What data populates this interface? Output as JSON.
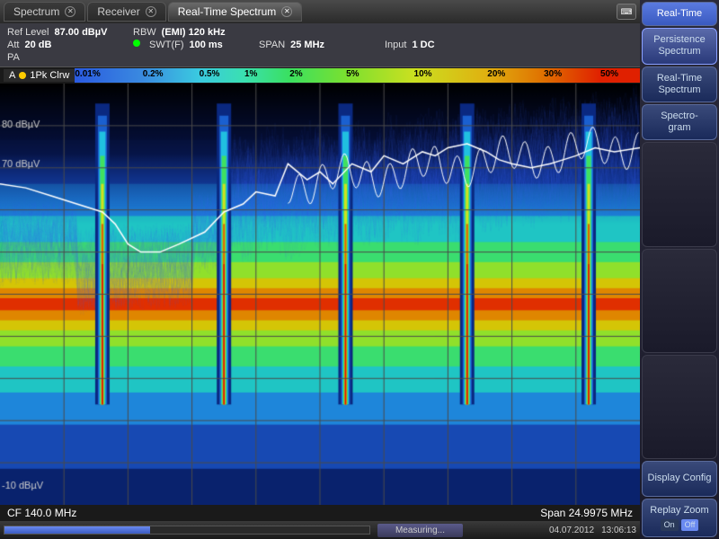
{
  "tabs": [
    {
      "label": "Spectrum",
      "active": false
    },
    {
      "label": "Receiver",
      "active": false
    },
    {
      "label": "Real-Time Spectrum",
      "active": true
    }
  ],
  "info": {
    "refLevelLabel": "Ref Level",
    "refLevel": "87.00 dBµV",
    "rbwLabel": "RBW",
    "rbw": "(EMI) 120 kHz",
    "attLabel": "Att",
    "att": "20 dB",
    "swtLabel": "SWT(F)",
    "swt": "100 ms",
    "spanLabel": "SPAN",
    "span": "25 MHz",
    "inputLabel": "Input",
    "input": "1 DC",
    "pa": "PA"
  },
  "trace": {
    "id": "A",
    "label": "1Pk Clrw"
  },
  "colorbar": {
    "stops": [
      {
        "pct": 0,
        "color": "#2a5ae0",
        "label": "0.01%"
      },
      {
        "pct": 12,
        "color": "#3a8ae0",
        "label": "0.2%"
      },
      {
        "pct": 22,
        "color": "#3acae0",
        "label": "0.5%"
      },
      {
        "pct": 30,
        "color": "#3ae0b0",
        "label": "1%"
      },
      {
        "pct": 38,
        "color": "#3ae060",
        "label": "2%"
      },
      {
        "pct": 48,
        "color": "#7ae030",
        "label": "5%"
      },
      {
        "pct": 60,
        "color": "#cae020",
        "label": "10%"
      },
      {
        "pct": 73,
        "color": "#e0b010",
        "label": "20%"
      },
      {
        "pct": 83,
        "color": "#e07000",
        "label": "30%"
      },
      {
        "pct": 93,
        "color": "#e02000",
        "label": "50%"
      }
    ]
  },
  "chart": {
    "ylim": [
      -15,
      90
    ],
    "yticks": [
      {
        "v": 80,
        "label": "80 dBµV"
      },
      {
        "v": 70,
        "label": "70 dBµV"
      },
      {
        "v": -10,
        "label": "-10 dBµV"
      }
    ],
    "grid_color": "#4a4a4a",
    "bg": "#000000",
    "peak_x": [
      0.16,
      0.35,
      0.54,
      0.73,
      0.92
    ],
    "trace_color": "#ffffff",
    "trace_points": [
      {
        "x": 0.0,
        "y": 65
      },
      {
        "x": 0.04,
        "y": 64
      },
      {
        "x": 0.08,
        "y": 62
      },
      {
        "x": 0.12,
        "y": 60
      },
      {
        "x": 0.16,
        "y": 58
      },
      {
        "x": 0.18,
        "y": 55
      },
      {
        "x": 0.2,
        "y": 50
      },
      {
        "x": 0.22,
        "y": 48
      },
      {
        "x": 0.25,
        "y": 48
      },
      {
        "x": 0.28,
        "y": 50
      },
      {
        "x": 0.32,
        "y": 53
      },
      {
        "x": 0.35,
        "y": 58
      },
      {
        "x": 0.38,
        "y": 60
      },
      {
        "x": 0.4,
        "y": 63
      },
      {
        "x": 0.43,
        "y": 62
      },
      {
        "x": 0.45,
        "y": 70
      },
      {
        "x": 0.48,
        "y": 66
      },
      {
        "x": 0.5,
        "y": 68
      },
      {
        "x": 0.52,
        "y": 65
      },
      {
        "x": 0.55,
        "y": 70
      },
      {
        "x": 0.58,
        "y": 68
      },
      {
        "x": 0.6,
        "y": 72
      },
      {
        "x": 0.63,
        "y": 70
      },
      {
        "x": 0.66,
        "y": 73
      },
      {
        "x": 0.68,
        "y": 72
      },
      {
        "x": 0.7,
        "y": 74
      },
      {
        "x": 0.73,
        "y": 75
      },
      {
        "x": 0.76,
        "y": 73
      },
      {
        "x": 0.78,
        "y": 71
      },
      {
        "x": 0.8,
        "y": 70
      },
      {
        "x": 0.83,
        "y": 69
      },
      {
        "x": 0.86,
        "y": 70
      },
      {
        "x": 0.88,
        "y": 71
      },
      {
        "x": 0.9,
        "y": 72
      },
      {
        "x": 0.93,
        "y": 74
      },
      {
        "x": 0.96,
        "y": 73
      },
      {
        "x": 1.0,
        "y": 74
      }
    ]
  },
  "bottom": {
    "cf": "CF 140.0 MHz",
    "span": "Span 24.9975 MHz"
  },
  "status": {
    "measuring": "Measuring...",
    "progress_pct": 40,
    "date": "04.07.2012",
    "time": "13:06:13"
  },
  "sidebar": {
    "title": "Real-Time",
    "buttons": [
      {
        "l1": "Persistence",
        "l2": "Spectrum",
        "active": true
      },
      {
        "l1": "Real-Time",
        "l2": "Spectrum",
        "active": false
      },
      {
        "l1": "Spectro-",
        "l2": "gram",
        "active": false
      }
    ],
    "display": "Display Config",
    "replay": {
      "label": "Replay Zoom",
      "on": "On",
      "off": "Off"
    }
  }
}
